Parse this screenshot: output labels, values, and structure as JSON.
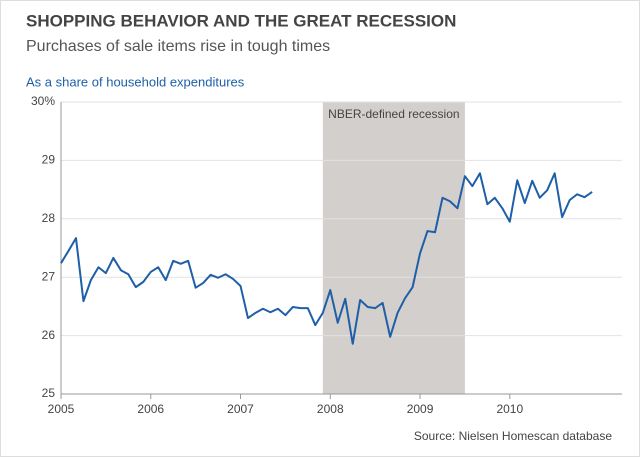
{
  "chart_data": {
    "type": "line",
    "title": "SHOPPING BEHAVIOR AND THE GREAT RECESSION",
    "subtitle": "Purchases of sale items rise in tough times",
    "y_label": "As a share of household expenditures",
    "source": "Source: Nielsen Homescan database",
    "recession": {
      "label": "NBER-defined recession",
      "start": 2007.917,
      "end": 2009.5,
      "color": "#d3cfcd"
    },
    "xlim": [
      2005,
      2011.25
    ],
    "xticks": [
      2005,
      2006,
      2007,
      2008,
      2009,
      2010
    ],
    "ylim": [
      25,
      30
    ],
    "yticks": [
      25,
      26,
      27,
      28,
      29,
      {
        "value": 30,
        "label": "30%"
      }
    ],
    "grid": true,
    "x": [
      2005,
      2005.083,
      2005.167,
      2005.25,
      2005.333,
      2005.417,
      2005.5,
      2005.583,
      2005.667,
      2005.75,
      2005.833,
      2005.917,
      2006,
      2006.083,
      2006.167,
      2006.25,
      2006.333,
      2006.417,
      2006.5,
      2006.583,
      2006.667,
      2006.75,
      2006.833,
      2006.917,
      2007,
      2007.083,
      2007.167,
      2007.25,
      2007.333,
      2007.417,
      2007.5,
      2007.583,
      2007.667,
      2007.75,
      2007.833,
      2007.917,
      2008,
      2008.083,
      2008.167,
      2008.25,
      2008.333,
      2008.417,
      2008.5,
      2008.583,
      2008.667,
      2008.75,
      2008.833,
      2008.917,
      2009,
      2009.083,
      2009.167,
      2009.25,
      2009.333,
      2009.417,
      2009.5,
      2009.583,
      2009.667,
      2009.75,
      2009.833,
      2009.917,
      2010,
      2010.083,
      2010.167,
      2010.25,
      2010.333,
      2010.417,
      2010.5,
      2010.583,
      2010.667,
      2010.75,
      2010.833,
      2010.917
    ],
    "series": [
      {
        "color": "#1f5fa8",
        "values": [
          27.24,
          27.45,
          27.67,
          26.59,
          26.95,
          27.17,
          27.07,
          27.33,
          27.12,
          27.05,
          26.83,
          26.92,
          27.09,
          27.17,
          26.95,
          27.28,
          27.23,
          27.28,
          26.82,
          26.9,
          27.04,
          26.99,
          27.05,
          26.97,
          26.85,
          26.3,
          26.39,
          26.46,
          26.4,
          26.46,
          26.35,
          26.49,
          26.47,
          26.47,
          26.18,
          26.39,
          26.78,
          26.22,
          26.63,
          25.86,
          26.61,
          26.49,
          26.47,
          26.56,
          25.98,
          26.39,
          26.64,
          26.83,
          27.41,
          27.79,
          27.77,
          28.36,
          28.3,
          28.18,
          28.73,
          28.56,
          28.78,
          28.25,
          28.36,
          28.18,
          27.95,
          28.66,
          28.27,
          28.65,
          28.36,
          28.49,
          28.78,
          28.03,
          28.32,
          28.42,
          28.37,
          28.46
        ]
      }
    ]
  }
}
